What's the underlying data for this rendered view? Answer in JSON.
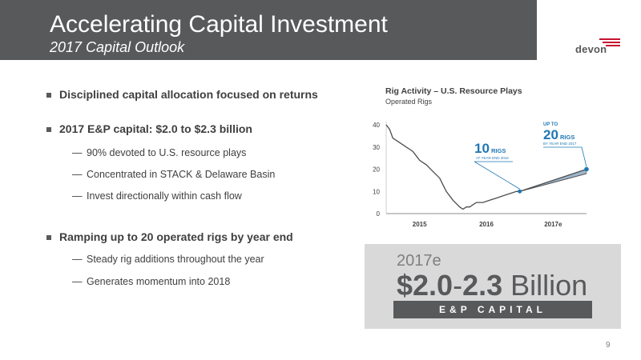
{
  "header": {
    "title": "Accelerating Capital Investment",
    "subtitle": "2017 Capital Outlook",
    "logo_text": "devon"
  },
  "bullets": [
    {
      "text": "Disciplined capital allocation focused on returns",
      "subs": []
    },
    {
      "text": "2017 E&P capital: $2.0 to $2.3 billion",
      "subs": [
        "90% devoted to U.S. resource plays",
        "Concentrated in STACK & Delaware Basin",
        "Invest directionally within cash flow"
      ]
    },
    {
      "text": "Ramping up to 20 operated rigs by year end",
      "subs": [
        "Steady rig additions throughout the year",
        "Generates momentum into 2018"
      ]
    }
  ],
  "dash": "—",
  "chart_data": {
    "type": "line",
    "title": "Rig Activity – U.S. Resource Plays",
    "subtitle": "Operated Rigs",
    "x_tick_labels": [
      "2015",
      "2016",
      "2017e"
    ],
    "y_ticks": [
      0,
      10,
      20,
      30,
      40
    ],
    "ylim": [
      0,
      40
    ],
    "xlim": [
      2015,
      2018
    ],
    "series": [
      {
        "x": [
          2015.0,
          2015.05,
          2015.1,
          2015.2,
          2015.3,
          2015.35,
          2015.4,
          2015.45,
          2015.5,
          2015.6,
          2015.7,
          2015.8,
          2015.85,
          2015.9,
          2015.95,
          2016.0,
          2016.1,
          2016.15,
          2016.2,
          2016.25,
          2016.35,
          2016.45,
          2016.55,
          2016.65,
          2016.75,
          2016.85,
          2016.95,
          2017.0
        ],
        "values": [
          40,
          38,
          34,
          32,
          30,
          29,
          28,
          26,
          24,
          22,
          19,
          16,
          13,
          10,
          8,
          6,
          3,
          2,
          3,
          3,
          5,
          5,
          6,
          7,
          8,
          9,
          10,
          10
        ]
      },
      {
        "x": [
          2017.0,
          2018.0
        ],
        "values": [
          10,
          20
        ],
        "band_upper": [
          10,
          20
        ],
        "band_lower": [
          10,
          18
        ]
      }
    ],
    "annotations": [
      {
        "big": "10",
        "small": "RIGS",
        "note": "AT YEAR END 2016"
      },
      {
        "prefix": "UP TO",
        "big": "20",
        "small": "RIGS",
        "note": "BY YEAR END 2017"
      }
    ],
    "colors": {
      "line": "#4d4d4f",
      "accent": "#1f77b4",
      "axis": "#8c8c8c"
    }
  },
  "capital": {
    "year": "2017e",
    "amount_low": "$2.0",
    "amount_sep": "-",
    "amount_high": "2.3",
    "amount_unit": " Billion",
    "label": "E&P CAPITAL"
  },
  "page_number": "9"
}
